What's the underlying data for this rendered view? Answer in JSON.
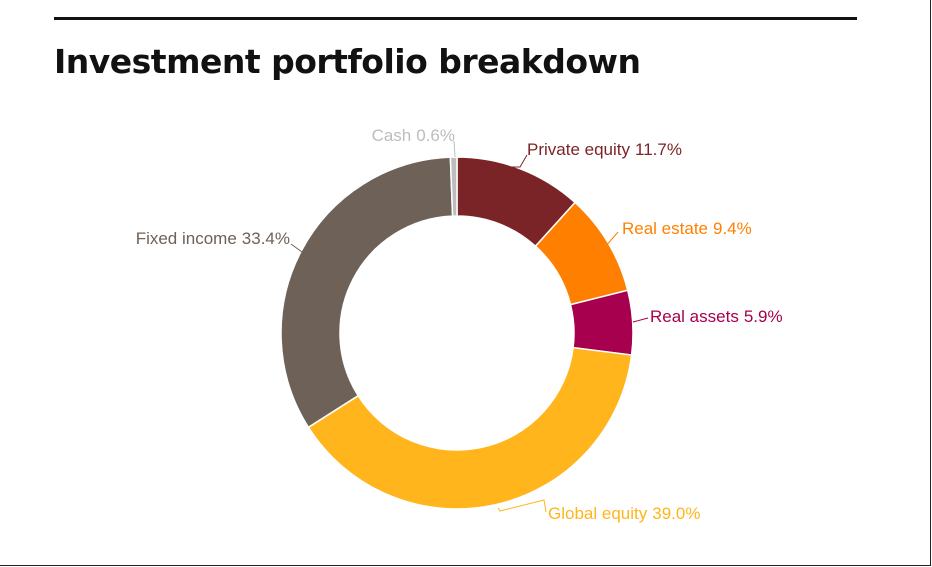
{
  "title": "Investment portfolio breakdown",
  "chart_data": {
    "type": "pie",
    "title": "Investment portfolio breakdown",
    "donut": true,
    "unit": "%",
    "start_angle_deg": 0,
    "direction": "clockwise",
    "slices": [
      {
        "key": "private-equity",
        "label": "Private equity",
        "value": 11.7,
        "display": "11.7%",
        "color": "#7B2428"
      },
      {
        "key": "real-estate",
        "label": "Real estate",
        "value": 9.4,
        "display": "9.4%",
        "color": "#FF8000"
      },
      {
        "key": "real-assets",
        "label": "Real assets",
        "value": 5.9,
        "display": "5.9%",
        "color": "#A6004E"
      },
      {
        "key": "global-equity",
        "label": "Global equity",
        "value": 39.0,
        "display": "39.0%",
        "color": "#FFB51B"
      },
      {
        "key": "fixed-income",
        "label": "Fixed income",
        "value": 33.4,
        "display": "33.4%",
        "color": "#6E6157"
      },
      {
        "key": "cash",
        "label": "Cash",
        "value": 0.6,
        "display": "0.6%",
        "color": "#BDBDBD"
      }
    ]
  }
}
